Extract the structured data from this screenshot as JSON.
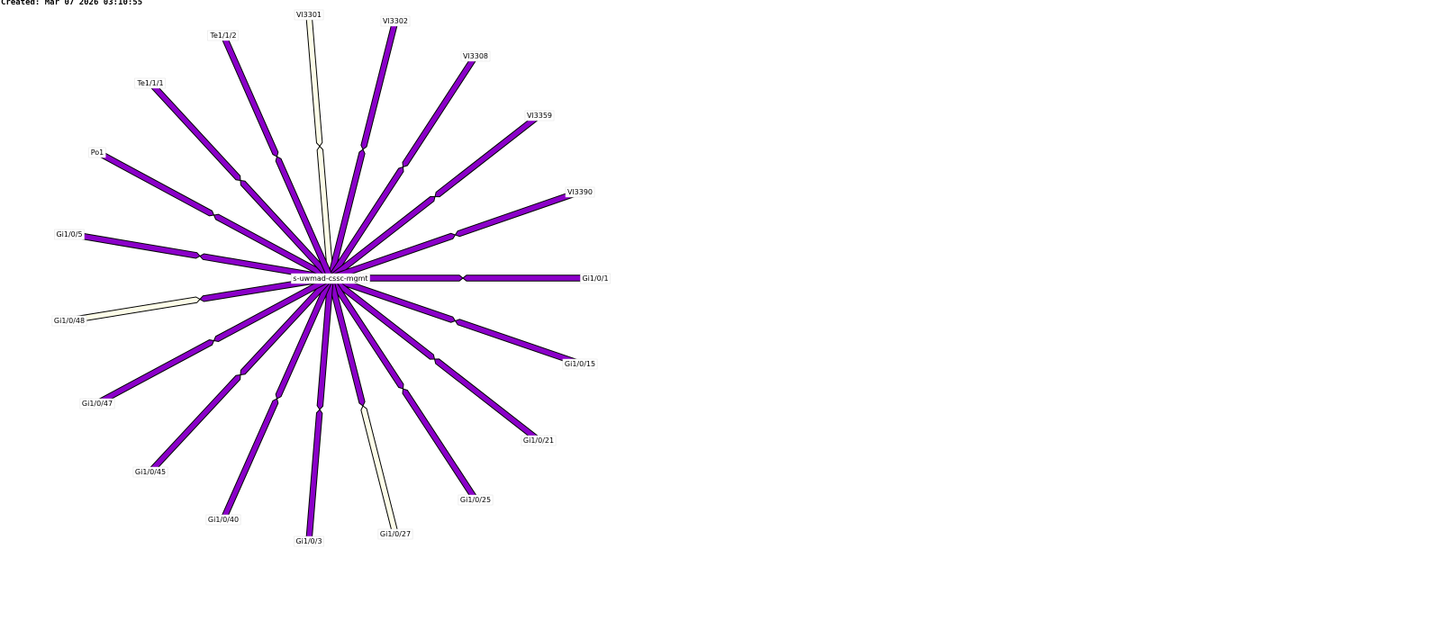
{
  "created": "Created: Mar 07 2026 03:10:55",
  "colors": {
    "purple": "#8b00c9",
    "cream": "#fdfde8",
    "outline": "#000000"
  },
  "center_node": {
    "label": "s-uwmad-cssc-mgmt"
  },
  "links": [
    {
      "label": "Vl3301",
      "in_color": "#fdfde8",
      "out_color": "#fdfde8"
    },
    {
      "label": "Vl3302",
      "in_color": "#8b00c9",
      "out_color": "#8b00c9"
    },
    {
      "label": "Vl3308",
      "in_color": "#8b00c9",
      "out_color": "#8b00c9"
    },
    {
      "label": "Vl3359",
      "in_color": "#8b00c9",
      "out_color": "#8b00c9"
    },
    {
      "label": "Vl3390",
      "in_color": "#8b00c9",
      "out_color": "#8b00c9"
    },
    {
      "label": "Gi1/0/1",
      "in_color": "#8b00c9",
      "out_color": "#8b00c9"
    },
    {
      "label": "Gi1/0/15",
      "in_color": "#8b00c9",
      "out_color": "#8b00c9"
    },
    {
      "label": "Gi1/0/21",
      "in_color": "#8b00c9",
      "out_color": "#8b00c9"
    },
    {
      "label": "Gi1/0/25",
      "in_color": "#8b00c9",
      "out_color": "#8b00c9"
    },
    {
      "label": "Gi1/0/27",
      "in_color": "#8b00c9",
      "out_color": "#fdfde8"
    },
    {
      "label": "Gi1/0/3",
      "in_color": "#8b00c9",
      "out_color": "#8b00c9"
    },
    {
      "label": "Gi1/0/40",
      "in_color": "#8b00c9",
      "out_color": "#8b00c9"
    },
    {
      "label": "Gi1/0/45",
      "in_color": "#8b00c9",
      "out_color": "#8b00c9"
    },
    {
      "label": "Gi1/0/47",
      "in_color": "#8b00c9",
      "out_color": "#8b00c9"
    },
    {
      "label": "Gi1/0/48",
      "in_color": "#8b00c9",
      "out_color": "#fdfde8"
    },
    {
      "label": "Gi1/0/5",
      "in_color": "#8b00c9",
      "out_color": "#8b00c9"
    },
    {
      "label": "Po1",
      "in_color": "#8b00c9",
      "out_color": "#8b00c9"
    },
    {
      "label": "Te1/1/1",
      "in_color": "#8b00c9",
      "out_color": "#8b00c9"
    },
    {
      "label": "Te1/1/2",
      "in_color": "#8b00c9",
      "out_color": "#8b00c9"
    }
  ]
}
